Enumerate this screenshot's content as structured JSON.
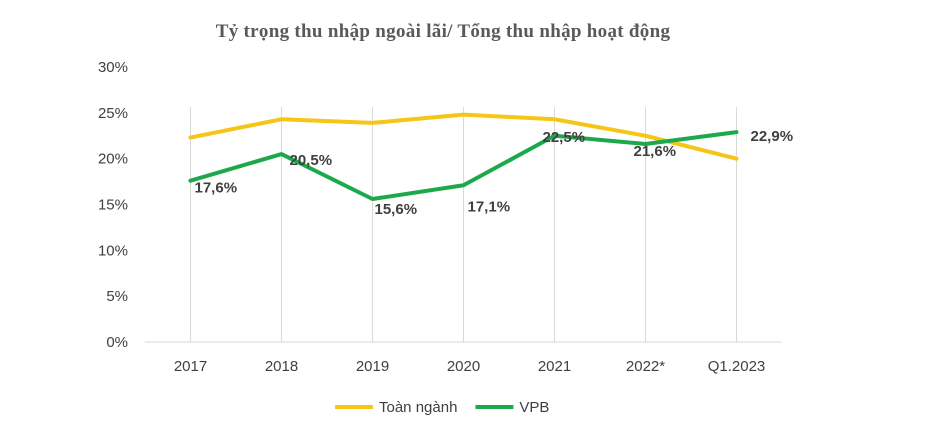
{
  "chart_data": {
    "type": "line",
    "title": "Tỷ trọng thu nhập ngoài lãi/ Tổng thu nhập hoạt động",
    "categories": [
      "2017",
      "2018",
      "2019",
      "2020",
      "2021",
      "2022*",
      "Q1.2023"
    ],
    "ylim": [
      0,
      30
    ],
    "yticks": [
      0,
      5,
      10,
      15,
      20,
      25,
      30
    ],
    "ytick_labels": [
      "0%",
      "5%",
      "10%",
      "15%",
      "20%",
      "25%",
      "30%"
    ],
    "grid": "vertical",
    "legend_position": "bottom",
    "series": [
      {
        "name": "Toàn ngành",
        "color": "#F5C518",
        "values": [
          22.3,
          24.3,
          23.9,
          24.8,
          24.3,
          22.5,
          20.0
        ],
        "labels": []
      },
      {
        "name": "VPB",
        "color": "#1DA94B",
        "values": [
          17.6,
          20.5,
          15.6,
          17.1,
          22.5,
          21.6,
          22.9
        ],
        "labels": [
          "17,6%",
          "20,5%",
          "15,6%",
          "17,1%",
          "22,5%",
          "21,6%",
          "22,9%"
        ]
      }
    ]
  }
}
